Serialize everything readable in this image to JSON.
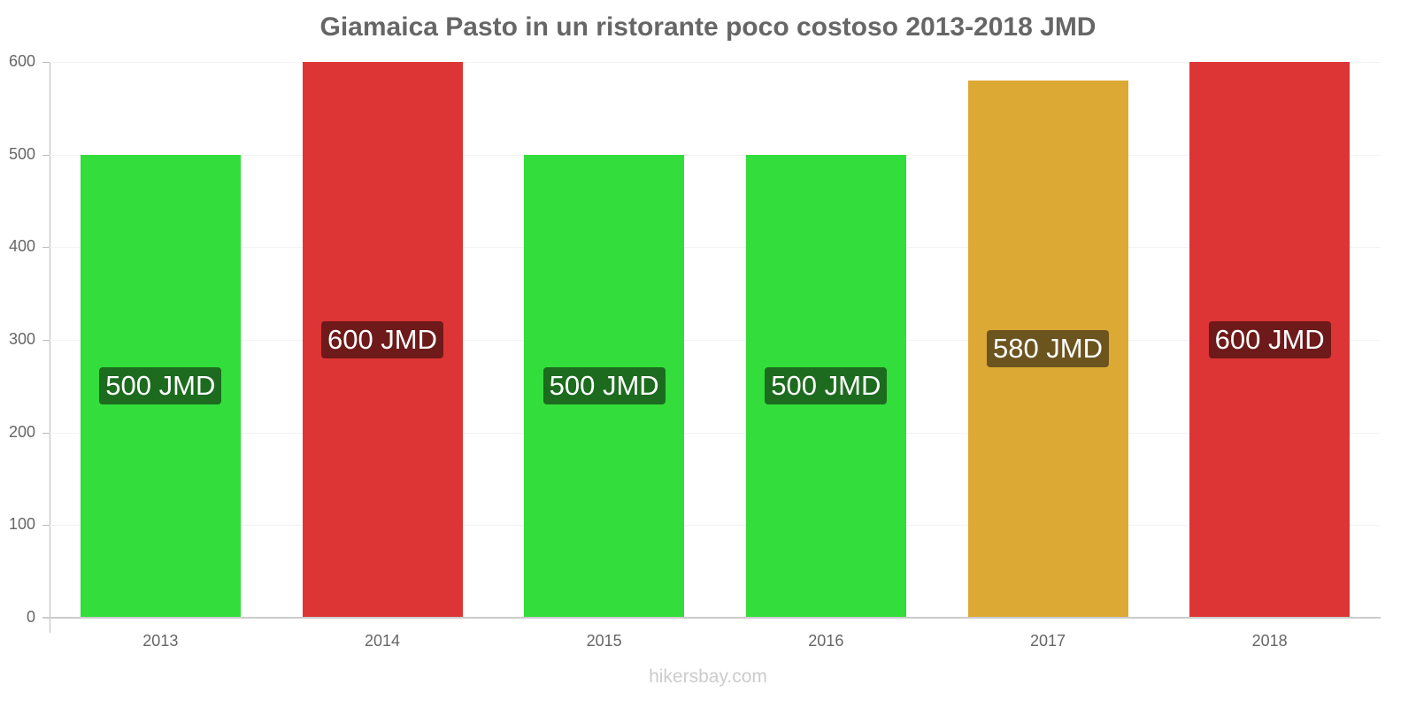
{
  "title": "Giamaica Pasto in un ristorante poco costoso 2013-2018 JMD",
  "footer": "hikersbay.com",
  "y_axis": {
    "ticks": [
      "0",
      "100",
      "200",
      "300",
      "400",
      "500",
      "600"
    ]
  },
  "bars": [
    {
      "year": "2013",
      "value": 500,
      "label": "500 JMD",
      "color": "#33dd3c",
      "label_bg": "#1c6b1e"
    },
    {
      "year": "2014",
      "value": 600,
      "label": "600 JMD",
      "color": "#dd3535",
      "label_bg": "#6e1a1a"
    },
    {
      "year": "2015",
      "value": 500,
      "label": "500 JMD",
      "color": "#33dd3c",
      "label_bg": "#1c6b1e"
    },
    {
      "year": "2016",
      "value": 500,
      "label": "500 JMD",
      "color": "#33dd3c",
      "label_bg": "#1c6b1e"
    },
    {
      "year": "2017",
      "value": 580,
      "label": "580 JMD",
      "color": "#dda935",
      "label_bg": "#6b541e"
    },
    {
      "year": "2018",
      "value": 600,
      "label": "600 JMD",
      "color": "#dd3535",
      "label_bg": "#6e1a1a"
    }
  ],
  "chart_data": {
    "type": "bar",
    "title": "Giamaica Pasto in un ristorante poco costoso 2013-2018 JMD",
    "categories": [
      "2013",
      "2014",
      "2015",
      "2016",
      "2017",
      "2018"
    ],
    "values": [
      500,
      600,
      500,
      500,
      580,
      600
    ],
    "data_labels": [
      "500 JMD",
      "600 JMD",
      "500 JMD",
      "500 JMD",
      "580 JMD",
      "600 JMD"
    ],
    "xlabel": "",
    "ylabel": "",
    "ylim": [
      0,
      600
    ],
    "yticks": [
      0,
      100,
      200,
      300,
      400,
      500,
      600
    ],
    "grid": true,
    "legend": null,
    "annotations": [
      "hikersbay.com"
    ]
  }
}
